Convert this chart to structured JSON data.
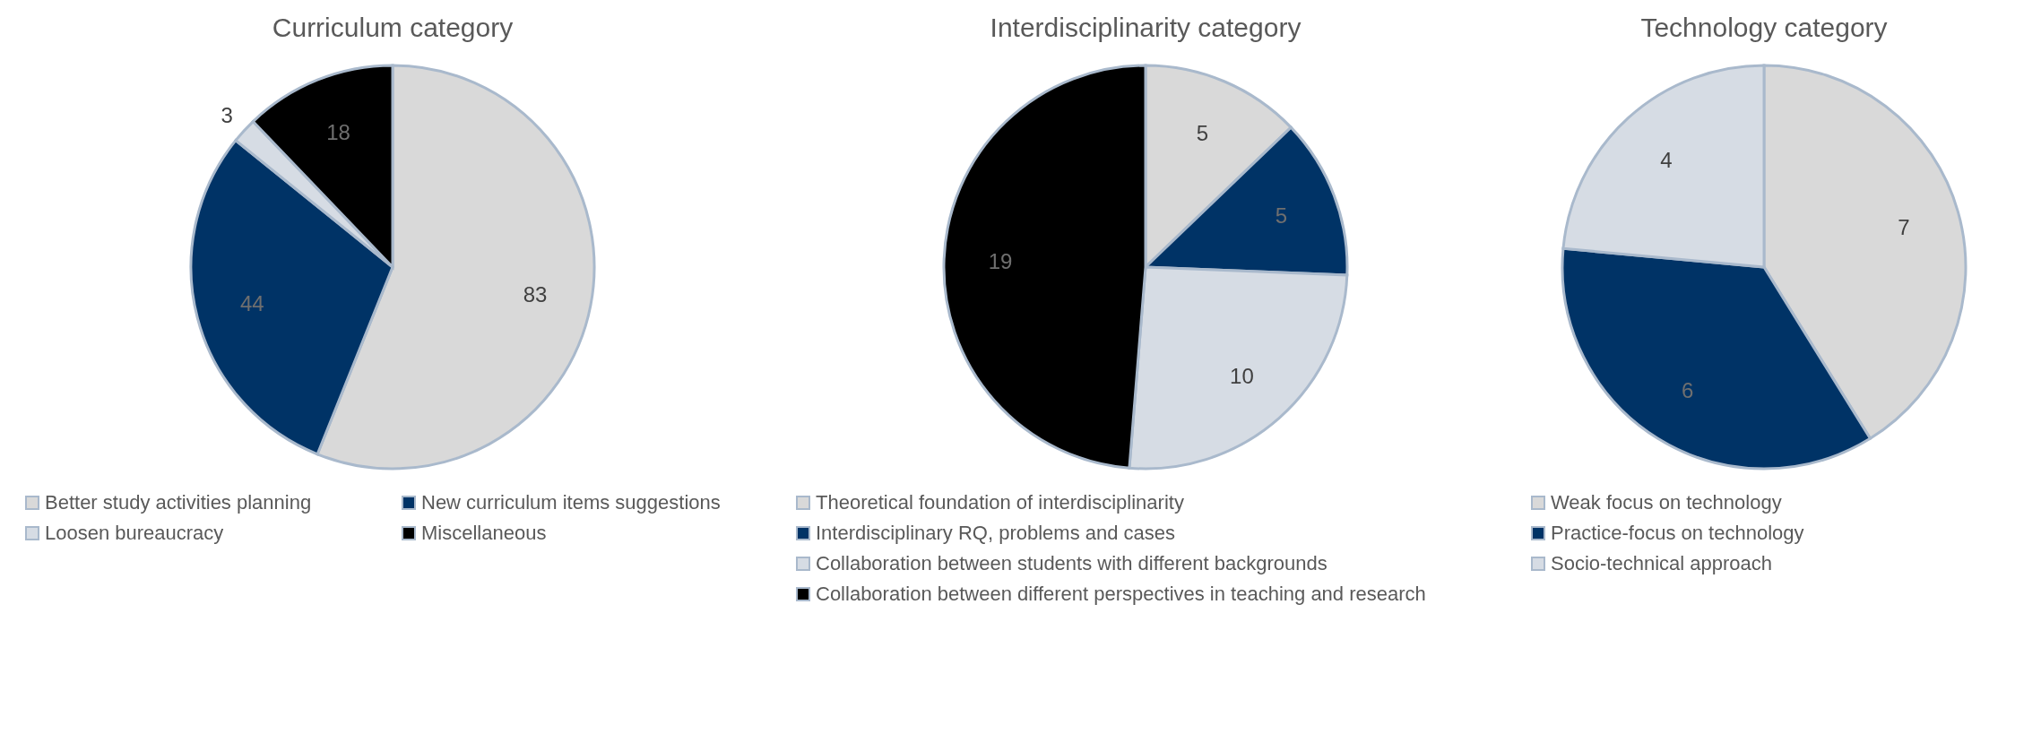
{
  "chart_data": [
    {
      "type": "pie",
      "title": "Curriculum category",
      "categories": [
        "Better study activities planning",
        "New curriculum items suggestions",
        "Loosen bureaucracy",
        "Miscellaneous"
      ],
      "values": [
        83,
        44,
        3,
        18
      ],
      "colors": [
        "#d9d9d9",
        "#003366",
        "#d6dce4",
        "#000000"
      ],
      "data_labels": true,
      "legend": "bottom"
    },
    {
      "type": "pie",
      "title": "Interdisciplinarity category",
      "categories": [
        "Theoretical foundation of interdisciplinarity",
        "Interdisciplinary RQ, problems and cases",
        "Collaboration between students with different backgrounds",
        "Collaboration between different perspectives in teaching and research"
      ],
      "values": [
        5,
        5,
        10,
        19
      ],
      "colors": [
        "#d9d9d9",
        "#003366",
        "#d6dce4",
        "#000000"
      ],
      "data_labels": true,
      "legend": "bottom"
    },
    {
      "type": "pie",
      "title": "Technology category",
      "categories": [
        "Weak focus on technology",
        "Practice-focus on technology",
        "Socio-technical approach"
      ],
      "values": [
        7,
        6,
        4
      ],
      "colors": [
        "#d9d9d9",
        "#003366",
        "#d6dce4"
      ],
      "data_labels": true,
      "legend": "bottom"
    }
  ]
}
